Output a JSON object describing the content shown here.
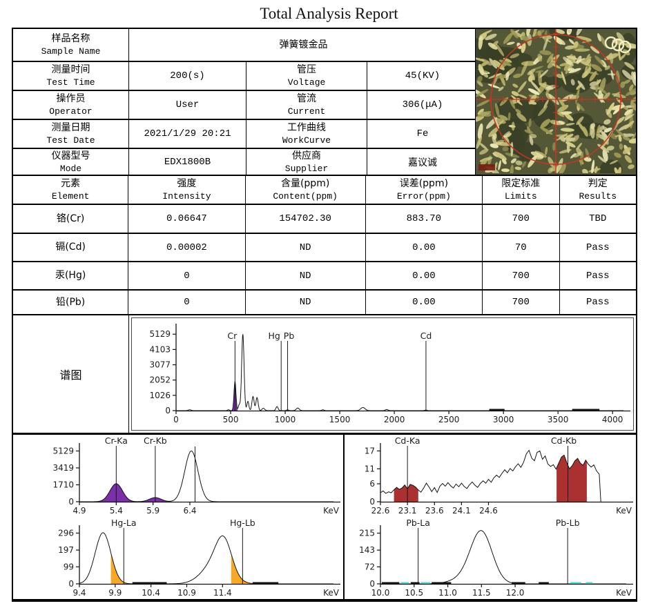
{
  "title": "Total Analysis Report",
  "spectrum_label": "谱图",
  "unit_label": "KeV",
  "colors": {
    "cr": "#9b59c8",
    "cd": "#a33a36",
    "hg": "#f2a024",
    "pb": "#4fd8d8",
    "cr_fill": "#7b2fa8",
    "cd_fill": "#ab3030",
    "hg_fill": "#f7a824",
    "pb_fill": "#4fd8d8",
    "reticle": "#cc3322"
  },
  "info": {
    "sample": {
      "label_cn": "样品名称",
      "label_en": "Sample Name",
      "value": "弹簧镀金品"
    },
    "rows": [
      {
        "l1_cn": "测量时间",
        "l1_en": "Test Time",
        "v1": "200(s)",
        "l2_cn": "管压",
        "l2_en": "Voltage",
        "v2": "45(KV)"
      },
      {
        "l1_cn": "操作员",
        "l1_en": "Operator",
        "v1": "User",
        "l2_cn": "管流",
        "l2_en": "Current",
        "v2": "306(μA)"
      },
      {
        "l1_cn": "测量日期",
        "l1_en": "Test Date",
        "v1": "2021/1/29 20:21",
        "l2_cn": "工作曲线",
        "l2_en": "WorkCurve",
        "v2": "Fe"
      },
      {
        "l1_cn": "仪器型号",
        "l1_en": "Mode",
        "v1": "EDX1800B",
        "l2_cn": "供应商",
        "l2_en": "Supplier",
        "v2": "嘉议诚"
      }
    ]
  },
  "elements": {
    "header": [
      {
        "cn": "元素",
        "en": "Element"
      },
      {
        "cn": "强度",
        "en": "Intensity"
      },
      {
        "cn": "含量(ppm)",
        "en": "Content(ppm)"
      },
      {
        "cn": "误差(ppm)",
        "en": "Error(ppm)"
      },
      {
        "cn": "限定标准",
        "en": "Limits"
      },
      {
        "cn": "判定",
        "en": "Results"
      }
    ],
    "rows": [
      {
        "element": "铬(Cr)",
        "intensity": "0.06647",
        "content": "154702.30",
        "error": "883.70",
        "limit": "700",
        "result": "TBD"
      },
      {
        "element": "镉(Cd)",
        "intensity": "0.00002",
        "content": "ND",
        "error": "0.00",
        "limit": "70",
        "result": "Pass"
      },
      {
        "element": "汞(Hg)",
        "intensity": "0",
        "content": "ND",
        "error": "0.00",
        "limit": "700",
        "result": "Pass"
      },
      {
        "element": "铅(Pb)",
        "intensity": "0",
        "content": "ND",
        "error": "0.00",
        "limit": "700",
        "result": "Pass"
      }
    ]
  },
  "chart_data": [
    {
      "id": "main",
      "type": "line",
      "name": "full-spectrum",
      "xlim": [
        0,
        4100
      ],
      "ylim": [
        0,
        5650
      ],
      "xdec": 0,
      "xticks": [
        0,
        500,
        1000,
        1500,
        2000,
        2500,
        3000,
        3500,
        4000
      ],
      "yticks": [
        0,
        1026,
        2052,
        3077,
        4103,
        5129
      ],
      "unit": "",
      "samples": 1500,
      "label_y": 30,
      "markers": [
        {
          "x": 540,
          "label": "Cr",
          "color": "#9b59c8",
          "dx": -4
        },
        {
          "x": 963,
          "label": "Hg",
          "color": "#f2a024",
          "dx": -10
        },
        {
          "x": 1022,
          "label": "Pb",
          "color": "#4fd8d8",
          "dx": 2
        },
        {
          "x": 2290,
          "label": "Cd",
          "color": "#a33a36",
          "dx": 0
        }
      ],
      "peaks": [
        [
          125,
          60,
          12
        ],
        [
          480,
          55,
          9
        ],
        [
          540,
          1950,
          9
        ],
        [
          578,
          380,
          8
        ],
        [
          612,
          5129,
          11
        ],
        [
          658,
          620,
          9
        ],
        [
          705,
          950,
          10
        ],
        [
          742,
          880,
          10
        ],
        [
          800,
          160,
          12
        ],
        [
          925,
          270,
          10
        ],
        [
          1022,
          60,
          8
        ],
        [
          1115,
          170,
          14
        ],
        [
          1345,
          55,
          10
        ],
        [
          1712,
          210,
          20
        ],
        [
          1930,
          75,
          12
        ],
        [
          2290,
          45,
          9
        ]
      ],
      "fills": [
        {
          "from": 514,
          "to": 564,
          "color": "#7b2fa8"
        }
      ],
      "marks": [
        {
          "from": 2870,
          "to": 3010
        },
        {
          "from": 3630,
          "to": 3880
        }
      ]
    },
    {
      "id": "cr",
      "type": "line",
      "name": "Cr-window",
      "xlim": [
        4.9,
        8.35
      ],
      "ylim": [
        0,
        5650
      ],
      "xdec": 1,
      "xticks": [
        4.9,
        5.4,
        5.9,
        6.4
      ],
      "yticks": [
        0,
        1710,
        3419,
        5129
      ],
      "unit": "KeV",
      "samples": 700,
      "label_y": 13,
      "markers": [
        {
          "x": 5.4,
          "label": "Cr-Ka",
          "color": "#9b59c8"
        },
        {
          "x": 5.93,
          "label": "Cr-Kb",
          "color": "#9b59c8"
        },
        {
          "x": 6.47,
          "label": "",
          "color": "#000"
        }
      ],
      "peaks": [
        [
          5.4,
          1820,
          0.085
        ],
        [
          5.93,
          420,
          0.08
        ],
        [
          6.42,
          5129,
          0.09
        ]
      ],
      "fills": [
        {
          "from": 5.12,
          "to": 5.7,
          "color": "#7b2fa8"
        },
        {
          "from": 5.72,
          "to": 6.14,
          "color": "#7b2fa8"
        }
      ],
      "marks": []
    },
    {
      "id": "cd",
      "type": "line",
      "name": "Cd-window",
      "xlim": [
        22.6,
        27.15
      ],
      "ylim": [
        0,
        18.7
      ],
      "xdec": 1,
      "xticks": [
        22.6,
        23.1,
        23.6,
        24.1,
        24.6
      ],
      "yticks": [
        0,
        6,
        11,
        17
      ],
      "unit": "KeV",
      "samples": 700,
      "label_y": 13,
      "markers": [
        {
          "x": 23.1,
          "label": "Cd-Ka",
          "color": "#a33a36"
        },
        {
          "x": 26.07,
          "label": "Cd-Kb",
          "color": "#a33a36",
          "dx": -6
        }
      ],
      "points": [
        [
          22.6,
          3.0
        ],
        [
          22.65,
          3.6
        ],
        [
          22.7,
          2.8
        ],
        [
          22.75,
          3.3
        ],
        [
          22.8,
          3.0
        ],
        [
          22.85,
          4.0
        ],
        [
          22.9,
          4.8
        ],
        [
          22.95,
          4.1
        ],
        [
          23.0,
          4.6
        ],
        [
          23.05,
          5.6
        ],
        [
          23.1,
          4.3
        ],
        [
          23.15,
          5.8
        ],
        [
          23.2,
          5.5
        ],
        [
          23.25,
          4.9
        ],
        [
          23.3,
          3.9
        ],
        [
          23.35,
          3.2
        ],
        [
          23.4,
          4.6
        ],
        [
          23.45,
          6.2
        ],
        [
          23.5,
          4.9
        ],
        [
          23.55,
          3.4
        ],
        [
          23.6,
          4.7
        ],
        [
          23.65,
          3.1
        ],
        [
          23.7,
          5.2
        ],
        [
          23.75,
          6.1
        ],
        [
          23.8,
          5.2
        ],
        [
          23.85,
          6.4
        ],
        [
          23.9,
          5.3
        ],
        [
          23.95,
          4.6
        ],
        [
          24.0,
          5.9
        ],
        [
          24.05,
          5.0
        ],
        [
          24.1,
          6.2
        ],
        [
          24.15,
          5.1
        ],
        [
          24.2,
          4.4
        ],
        [
          24.25,
          5.7
        ],
        [
          24.3,
          6.6
        ],
        [
          24.35,
          5.5
        ],
        [
          24.4,
          4.8
        ],
        [
          24.45,
          6.1
        ],
        [
          24.5,
          7.0
        ],
        [
          24.55,
          6.2
        ],
        [
          24.6,
          7.5
        ],
        [
          24.65,
          6.5
        ],
        [
          24.7,
          8.0
        ],
        [
          24.75,
          8.9
        ],
        [
          24.8,
          8.1
        ],
        [
          24.85,
          9.5
        ],
        [
          24.9,
          10.7
        ],
        [
          24.95,
          9.7
        ],
        [
          25.0,
          11.1
        ],
        [
          25.05,
          10.3
        ],
        [
          25.1,
          11.7
        ],
        [
          25.15,
          12.7
        ],
        [
          25.2,
          11.5
        ],
        [
          25.25,
          13.2
        ],
        [
          25.3,
          16.0
        ],
        [
          25.35,
          17.2
        ],
        [
          25.4,
          14.6
        ],
        [
          25.45,
          13.7
        ],
        [
          25.5,
          16.5
        ],
        [
          25.55,
          17.0
        ],
        [
          25.6,
          14.2
        ],
        [
          25.65,
          15.3
        ],
        [
          25.7,
          12.6
        ],
        [
          25.75,
          11.8
        ],
        [
          25.8,
          12.4
        ],
        [
          25.85,
          10.9
        ],
        [
          25.9,
          12.9
        ],
        [
          25.95,
          14.9
        ],
        [
          26.0,
          15.6
        ],
        [
          26.05,
          13.1
        ],
        [
          26.1,
          11.0
        ],
        [
          26.15,
          12.1
        ],
        [
          26.2,
          13.7
        ],
        [
          26.25,
          14.5
        ],
        [
          26.3,
          12.9
        ],
        [
          26.35,
          12.2
        ],
        [
          26.4,
          13.9
        ],
        [
          26.45,
          12.5
        ],
        [
          26.5,
          11.6
        ],
        [
          26.55,
          12.3
        ],
        [
          26.6,
          10.3
        ],
        [
          26.65,
          9.2
        ],
        [
          26.68,
          0.0
        ]
      ],
      "fills": [
        {
          "from": 22.85,
          "to": 23.3,
          "color": "#ab3030"
        },
        {
          "from": 25.86,
          "to": 26.42,
          "color": "#ab3030"
        }
      ],
      "marks": []
    },
    {
      "id": "hg",
      "type": "line",
      "name": "Hg-window",
      "xlim": [
        9.4,
        12.95
      ],
      "ylim": [
        0,
        326
      ],
      "xdec": 1,
      "xticks": [
        9.4,
        9.9,
        10.4,
        10.9,
        11.4
      ],
      "yticks": [
        0,
        99,
        197,
        296
      ],
      "unit": "KeV",
      "samples": 700,
      "label_y": 13,
      "markers": [
        {
          "x": 10.02,
          "label": "Hg-La",
          "color": "#f2a024"
        },
        {
          "x": 11.68,
          "label": "Hg-Lb",
          "color": "#f2a024"
        }
      ],
      "peaks": [
        [
          9.73,
          298,
          0.11
        ],
        [
          11.3,
          120,
          0.18
        ],
        [
          11.42,
          180,
          0.11
        ]
      ],
      "fills": [
        {
          "from": 9.84,
          "to": 10.1,
          "color": "#f7a824"
        },
        {
          "from": 11.52,
          "to": 11.8,
          "color": "#f7a824"
        }
      ],
      "marks": [
        {
          "from": 10.14,
          "to": 10.62
        },
        {
          "from": 11.82,
          "to": 12.18
        }
      ]
    },
    {
      "id": "pb",
      "type": "line",
      "name": "Pb-window",
      "xlim": [
        10.0,
        13.65
      ],
      "ylim": [
        0,
        237
      ],
      "xdec": 1,
      "xticks": [
        10.0,
        10.5,
        11.0,
        11.5,
        12.0
      ],
      "yticks": [
        0,
        72,
        143,
        215
      ],
      "unit": "KeV",
      "samples": 700,
      "label_y": 13,
      "markers": [
        {
          "x": 10.56,
          "label": "Pb-La",
          "color": "#4fd8d8"
        },
        {
          "x": 12.78,
          "label": "Pb-Lb",
          "color": "#4fd8d8"
        }
      ],
      "peaks": [
        [
          11.5,
          215,
          0.16
        ],
        [
          11.26,
          22,
          0.2
        ]
      ],
      "fills": [],
      "marks": [
        {
          "from": 10.02,
          "to": 10.28
        },
        {
          "from": 10.45,
          "to": 10.58
        },
        {
          "from": 10.76,
          "to": 11.05
        },
        {
          "from": 11.95,
          "to": 12.15
        },
        {
          "from": 12.35,
          "to": 12.5
        },
        {
          "from": 10.3,
          "to": 10.42,
          "color": "#4fd8d8"
        },
        {
          "from": 10.6,
          "to": 10.74,
          "color": "#4fd8d8"
        },
        {
          "from": 12.82,
          "to": 12.98,
          "color": "#4fd8d8"
        },
        {
          "from": 13.05,
          "to": 13.15,
          "color": "#4fd8d8"
        }
      ]
    }
  ]
}
